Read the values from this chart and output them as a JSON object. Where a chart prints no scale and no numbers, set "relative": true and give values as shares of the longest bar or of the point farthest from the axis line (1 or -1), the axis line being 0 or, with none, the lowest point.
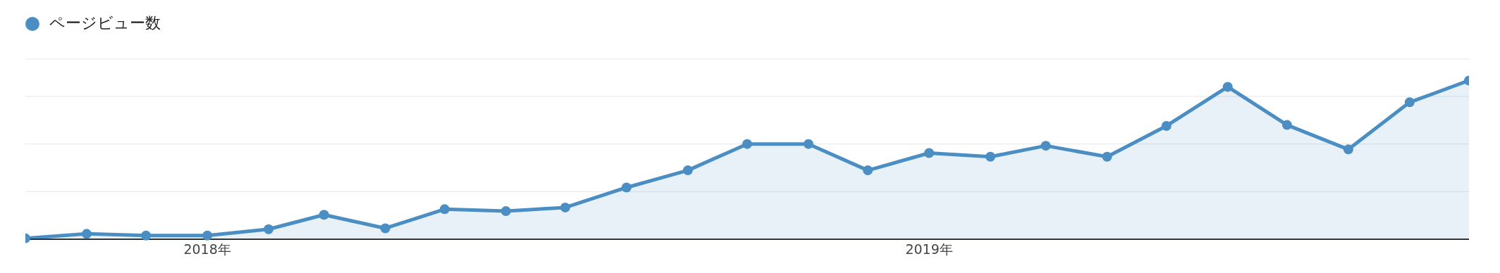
{
  "chart_data": {
    "type": "area",
    "relative": true,
    "x": [
      "2017-10",
      "2017-11",
      "2017-12",
      "2018-01",
      "2018-02",
      "2018-03",
      "2018-04",
      "2018-05",
      "2018-06",
      "2018-07",
      "2018-08",
      "2018-09",
      "2018-10",
      "2018-11",
      "2018-12",
      "2019-01",
      "2019-02",
      "2019-03",
      "2019-04",
      "2019-05",
      "2019-06",
      "2019-07",
      "2019-08",
      "2019-09",
      "2019-10"
    ],
    "series": [
      {
        "name": "ページビュー数",
        "color": "#4a8ec4",
        "values": [
          0.006,
          0.034,
          0.023,
          0.023,
          0.063,
          0.154,
          0.069,
          0.189,
          0.177,
          0.2,
          0.326,
          0.434,
          0.6,
          0.6,
          0.434,
          0.543,
          0.52,
          0.589,
          0.52,
          0.714,
          0.96,
          0.72,
          0.566,
          0.863,
          1
        ]
      }
    ],
    "xlim": [
      "2017-10",
      "2019-10"
    ],
    "xticks": [
      {
        "value": "2018-01",
        "label": "2018年"
      },
      {
        "value": "2019-01",
        "label": "2019年"
      }
    ],
    "grid": "y",
    "legend": "top left",
    "marker": "circle",
    "line_style": "solid"
  }
}
